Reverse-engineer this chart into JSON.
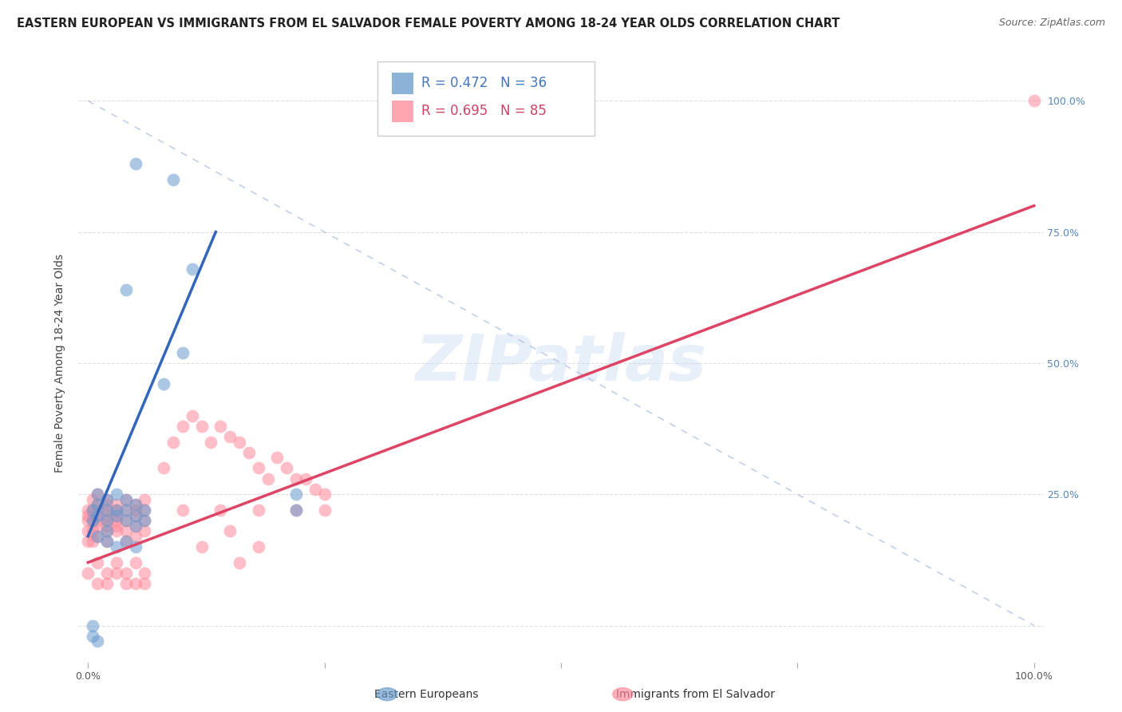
{
  "title": "EASTERN EUROPEAN VS IMMIGRANTS FROM EL SALVADOR FEMALE POVERTY AMONG 18-24 YEAR OLDS CORRELATION CHART",
  "source": "Source: ZipAtlas.com",
  "ylabel": "Female Poverty Among 18-24 Year Olds",
  "blue_color": "#6699CC",
  "pink_color": "#FF8899",
  "blue_line_color": "#3366BB",
  "pink_line_color": "#DD4466",
  "blue_R": 0.472,
  "blue_N": 36,
  "pink_R": 0.695,
  "pink_N": 85,
  "watermark": "ZIPatlas",
  "background_color": "#ffffff",
  "grid_color": "#dddddd",
  "title_fontsize": 10.5,
  "label_fontsize": 10,
  "tick_fontsize": 9,
  "legend_fontsize": 12
}
